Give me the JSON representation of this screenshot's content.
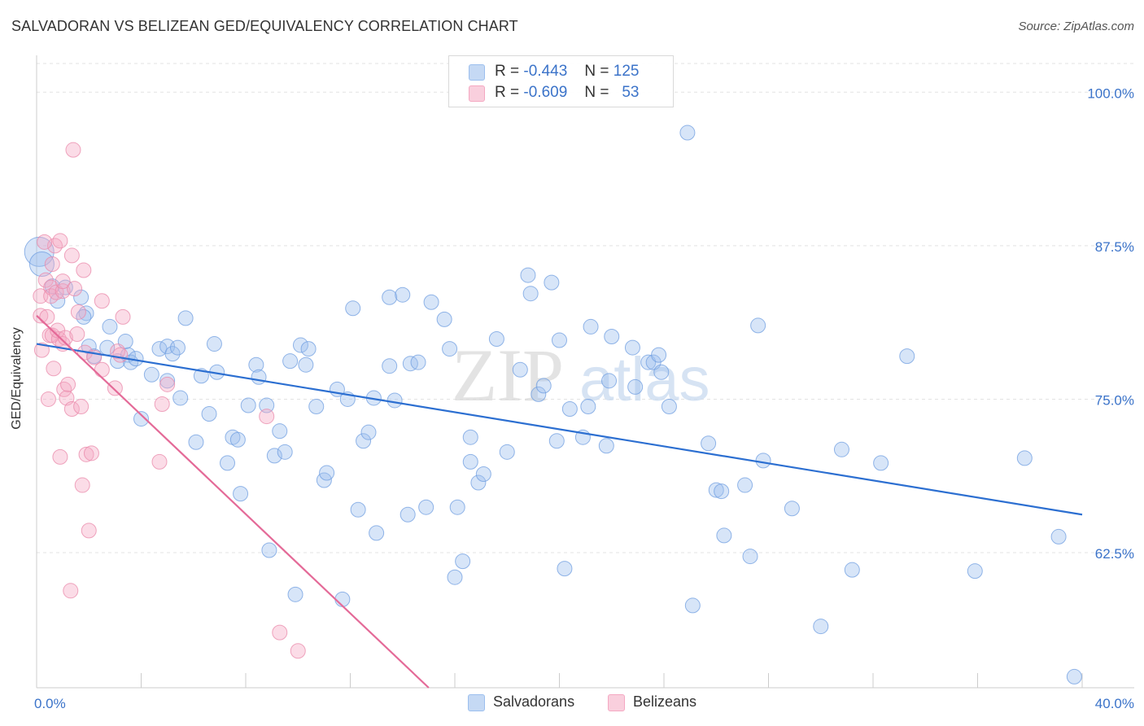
{
  "chart_data": {
    "type": "scatter",
    "title": "SALVADORAN VS BELIZEAN GED/EQUIVALENCY CORRELATION CHART",
    "source": "Source: ZipAtlas.com",
    "ylabel": "GED/Equivalency",
    "xlabel": "",
    "xlim": [
      0,
      40
    ],
    "ylim": [
      51.5,
      103
    ],
    "x_tick_labels": [
      "0.0%",
      "40.0%"
    ],
    "y_ticks": [
      62.5,
      75.0,
      87.5,
      100.0
    ],
    "y_tick_labels": [
      "62.5%",
      "75.0%",
      "87.5%",
      "100.0%"
    ],
    "grid": true,
    "watermark": {
      "zip": "ZIP",
      "atlas": "atlas"
    },
    "legend": {
      "position": "top-center",
      "entries": [
        {
          "r_label": "R =",
          "r_value": "-0.443",
          "n_label": "N =",
          "n_value": "125"
        },
        {
          "r_label": "R =",
          "r_value": "-0.609",
          "n_label": "N =",
          "n_value": "53"
        }
      ]
    },
    "colors": {
      "salvadorans": "#9cbfee",
      "salvadorans_line": "#2c6fd1",
      "belizeans": "#f4a8c2",
      "belizeans_line": "#e46a98"
    },
    "series": [
      {
        "name": "Salvadorans",
        "trend": {
          "x": [
            0,
            40
          ],
          "y": [
            79.5,
            65.6
          ]
        },
        "points": [
          [
            0.1,
            87.0
          ],
          [
            0.2,
            86.0
          ],
          [
            0.6,
            84.2
          ],
          [
            0.8,
            83.0
          ],
          [
            1.1,
            84.1
          ],
          [
            1.7,
            83.3
          ],
          [
            1.9,
            82.0
          ],
          [
            1.8,
            81.7
          ],
          [
            2.0,
            79.3
          ],
          [
            2.2,
            78.5
          ],
          [
            2.7,
            79.2
          ],
          [
            2.8,
            80.9
          ],
          [
            3.1,
            78.1
          ],
          [
            3.5,
            78.6
          ],
          [
            3.4,
            79.7
          ],
          [
            3.6,
            78.0
          ],
          [
            3.8,
            78.3
          ],
          [
            4.0,
            73.4
          ],
          [
            4.4,
            77.0
          ],
          [
            4.7,
            79.1
          ],
          [
            5.0,
            79.3
          ],
          [
            5.0,
            76.5
          ],
          [
            5.2,
            78.7
          ],
          [
            5.4,
            79.2
          ],
          [
            5.5,
            75.1
          ],
          [
            5.7,
            81.6
          ],
          [
            6.1,
            71.5
          ],
          [
            6.3,
            76.9
          ],
          [
            6.6,
            73.8
          ],
          [
            6.8,
            79.5
          ],
          [
            6.9,
            77.2
          ],
          [
            7.3,
            69.8
          ],
          [
            7.5,
            71.9
          ],
          [
            7.7,
            71.7
          ],
          [
            7.8,
            67.3
          ],
          [
            8.1,
            74.5
          ],
          [
            8.4,
            77.8
          ],
          [
            8.5,
            76.8
          ],
          [
            8.8,
            74.5
          ],
          [
            8.9,
            62.7
          ],
          [
            9.1,
            70.4
          ],
          [
            9.3,
            72.4
          ],
          [
            9.5,
            70.7
          ],
          [
            9.7,
            78.1
          ],
          [
            9.9,
            59.1
          ],
          [
            10.1,
            79.4
          ],
          [
            10.3,
            77.8
          ],
          [
            10.4,
            79.1
          ],
          [
            10.7,
            74.4
          ],
          [
            11.0,
            68.4
          ],
          [
            11.1,
            69.0
          ],
          [
            11.5,
            75.8
          ],
          [
            11.7,
            58.7
          ],
          [
            11.9,
            75.0
          ],
          [
            12.1,
            82.4
          ],
          [
            12.3,
            66.0
          ],
          [
            12.5,
            71.6
          ],
          [
            12.7,
            72.3
          ],
          [
            12.9,
            75.1
          ],
          [
            13.0,
            64.1
          ],
          [
            13.5,
            77.7
          ],
          [
            13.5,
            83.3
          ],
          [
            13.7,
            74.9
          ],
          [
            14.0,
            83.5
          ],
          [
            14.2,
            65.6
          ],
          [
            14.3,
            77.9
          ],
          [
            14.6,
            78.0
          ],
          [
            14.9,
            66.2
          ],
          [
            15.1,
            82.9
          ],
          [
            15.6,
            81.5
          ],
          [
            15.8,
            79.1
          ],
          [
            16.0,
            60.5
          ],
          [
            16.1,
            66.2
          ],
          [
            16.3,
            61.8
          ],
          [
            16.6,
            71.9
          ],
          [
            16.6,
            69.9
          ],
          [
            16.9,
            68.2
          ],
          [
            17.1,
            68.9
          ],
          [
            17.6,
            79.9
          ],
          [
            18.0,
            70.7
          ],
          [
            18.5,
            77.4
          ],
          [
            18.8,
            85.1
          ],
          [
            18.9,
            83.6
          ],
          [
            19.2,
            75.4
          ],
          [
            19.4,
            76.1
          ],
          [
            19.7,
            84.5
          ],
          [
            19.9,
            71.6
          ],
          [
            20.0,
            79.8
          ],
          [
            20.2,
            61.2
          ],
          [
            20.4,
            74.2
          ],
          [
            20.9,
            71.9
          ],
          [
            21.1,
            74.4
          ],
          [
            21.2,
            80.9
          ],
          [
            21.8,
            71.2
          ],
          [
            21.9,
            76.5
          ],
          [
            22.0,
            80.1
          ],
          [
            22.8,
            79.2
          ],
          [
            22.9,
            76.0
          ],
          [
            23.4,
            78.0
          ],
          [
            23.6,
            78.0
          ],
          [
            23.8,
            78.6
          ],
          [
            23.9,
            77.2
          ],
          [
            24.2,
            74.4
          ],
          [
            24.9,
            96.7
          ],
          [
            25.1,
            58.2
          ],
          [
            25.7,
            71.4
          ],
          [
            26.0,
            67.6
          ],
          [
            26.2,
            67.5
          ],
          [
            26.3,
            63.9
          ],
          [
            27.1,
            68.0
          ],
          [
            27.3,
            62.2
          ],
          [
            27.6,
            81.0
          ],
          [
            27.8,
            70.0
          ],
          [
            28.9,
            66.1
          ],
          [
            30.0,
            56.5
          ],
          [
            30.8,
            70.9
          ],
          [
            31.2,
            61.1
          ],
          [
            32.3,
            69.8
          ],
          [
            33.3,
            78.5
          ],
          [
            35.9,
            61.0
          ],
          [
            37.8,
            70.2
          ],
          [
            39.1,
            63.8
          ],
          [
            39.7,
            52.4
          ]
        ]
      },
      {
        "name": "Belizeans",
        "trend": {
          "x": [
            0,
            15
          ],
          "y": [
            81.8,
            51.5
          ]
        },
        "points": [
          [
            0.15,
            83.4
          ],
          [
            0.15,
            81.8
          ],
          [
            0.2,
            79.0
          ],
          [
            0.35,
            84.7
          ],
          [
            0.4,
            81.7
          ],
          [
            0.45,
            75.0
          ],
          [
            0.5,
            80.2
          ],
          [
            0.55,
            84.1
          ],
          [
            0.55,
            83.4
          ],
          [
            0.6,
            80.2
          ],
          [
            0.6,
            86.0
          ],
          [
            0.65,
            77.5
          ],
          [
            0.7,
            87.5
          ],
          [
            0.75,
            83.7
          ],
          [
            0.85,
            79.9
          ],
          [
            0.8,
            80.6
          ],
          [
            0.9,
            87.9
          ],
          [
            0.9,
            70.3
          ],
          [
            1.0,
            83.8
          ],
          [
            1.0,
            84.6
          ],
          [
            1.0,
            79.5
          ],
          [
            1.05,
            75.8
          ],
          [
            1.1,
            80.0
          ],
          [
            1.15,
            75.1
          ],
          [
            1.2,
            76.2
          ],
          [
            1.3,
            59.4
          ],
          [
            1.35,
            74.2
          ],
          [
            1.35,
            86.7
          ],
          [
            1.4,
            95.3
          ],
          [
            1.45,
            84.0
          ],
          [
            1.55,
            80.3
          ],
          [
            1.6,
            82.1
          ],
          [
            1.7,
            74.4
          ],
          [
            1.75,
            68.0
          ],
          [
            1.8,
            85.5
          ],
          [
            1.85,
            78.8
          ],
          [
            1.9,
            70.5
          ],
          [
            2.0,
            64.3
          ],
          [
            2.1,
            70.6
          ],
          [
            2.2,
            78.4
          ],
          [
            2.5,
            77.4
          ],
          [
            2.5,
            83.0
          ],
          [
            3.0,
            75.9
          ],
          [
            3.1,
            78.9
          ],
          [
            3.2,
            78.6
          ],
          [
            3.3,
            81.7
          ],
          [
            4.7,
            69.9
          ],
          [
            4.8,
            74.6
          ],
          [
            5.0,
            76.2
          ],
          [
            8.8,
            73.6
          ],
          [
            9.3,
            56.0
          ],
          [
            10.0,
            54.5
          ],
          [
            0.3,
            87.8
          ]
        ]
      }
    ]
  },
  "bottom_legend": {
    "salvadorans": "Salvadorans",
    "belizeans": "Belizeans"
  }
}
